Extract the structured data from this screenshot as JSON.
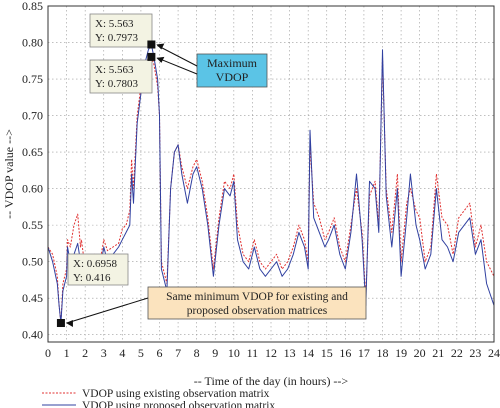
{
  "chart_data": {
    "type": "line",
    "xlabel": "-- Time of the day (in hours) -->",
    "ylabel": "-- VDOP value -->",
    "xlim": [
      0,
      24
    ],
    "ylim": [
      0.39,
      0.85
    ],
    "xticks": [
      0,
      1,
      2,
      3,
      4,
      5,
      6,
      7,
      8,
      9,
      10,
      11,
      12,
      13,
      14,
      15,
      16,
      17,
      18,
      19,
      20,
      21,
      22,
      23,
      24
    ],
    "yticks": [
      0.4,
      0.45,
      0.5,
      0.55,
      0.6,
      0.65,
      0.7,
      0.75,
      0.8,
      0.85
    ],
    "grid": "dotted",
    "legend_position": "bottom-left, below plot",
    "series": [
      {
        "name": "VDOP using existing observation matrix",
        "color": "#e03030",
        "style": "dotted",
        "x": [
          0,
          0.25,
          0.5,
          0.6,
          0.6958,
          0.8,
          1.0,
          1.05,
          1.2,
          1.4,
          1.6,
          1.75,
          1.8,
          2.0,
          2.2,
          2.5,
          2.8,
          3.0,
          3.2,
          3.5,
          3.8,
          4.0,
          4.2,
          4.4,
          4.5,
          4.6,
          4.8,
          5.0,
          5.2,
          5.4,
          5.563,
          5.7,
          5.9,
          6.0,
          6.1,
          6.4,
          6.6,
          6.8,
          7.0,
          7.2,
          7.5,
          7.8,
          8.0,
          8.3,
          8.6,
          8.9,
          9.2,
          9.5,
          9.8,
          10.0,
          10.2,
          10.5,
          10.8,
          11.1,
          11.4,
          11.7,
          12.0,
          12.3,
          12.6,
          12.9,
          13.2,
          13.5,
          13.8,
          14.0,
          14.1,
          14.3,
          14.6,
          14.9,
          15.1,
          15.4,
          15.7,
          16.0,
          16.3,
          16.6,
          16.9,
          17.1,
          17.3,
          17.6,
          17.8,
          18.0,
          18.2,
          18.5,
          18.8,
          19.0,
          19.3,
          19.5,
          19.8,
          20.0,
          20.3,
          20.6,
          20.9,
          21.2,
          21.5,
          21.8,
          22.1,
          22.4,
          22.7,
          23.0,
          23.3,
          23.6,
          24.0
        ],
        "y": [
          0.52,
          0.51,
          0.48,
          0.44,
          0.416,
          0.47,
          0.49,
          0.53,
          0.52,
          0.55,
          0.565,
          0.52,
          0.53,
          0.49,
          0.5,
          0.51,
          0.5,
          0.53,
          0.515,
          0.52,
          0.525,
          0.545,
          0.55,
          0.57,
          0.64,
          0.6,
          0.7,
          0.74,
          0.76,
          0.78,
          0.7803,
          0.77,
          0.74,
          0.7,
          0.5,
          0.47,
          0.6,
          0.65,
          0.66,
          0.63,
          0.6,
          0.63,
          0.64,
          0.61,
          0.56,
          0.49,
          0.56,
          0.61,
          0.6,
          0.62,
          0.55,
          0.51,
          0.5,
          0.53,
          0.5,
          0.49,
          0.5,
          0.51,
          0.49,
          0.5,
          0.52,
          0.55,
          0.53,
          0.5,
          0.66,
          0.58,
          0.56,
          0.53,
          0.54,
          0.56,
          0.52,
          0.5,
          0.55,
          0.6,
          0.54,
          0.45,
          0.59,
          0.61,
          0.55,
          0.78,
          0.6,
          0.54,
          0.62,
          0.5,
          0.58,
          0.6,
          0.57,
          0.56,
          0.5,
          0.52,
          0.62,
          0.56,
          0.55,
          0.51,
          0.56,
          0.57,
          0.58,
          0.52,
          0.55,
          0.5,
          0.48
        ]
      },
      {
        "name": "VDOP using proposed observation matrix",
        "color": "#3040a0",
        "style": "solid",
        "x": [
          0,
          0.25,
          0.5,
          0.6,
          0.6958,
          0.8,
          1.0,
          1.05,
          1.2,
          1.4,
          1.6,
          1.75,
          1.8,
          2.0,
          2.2,
          2.5,
          2.8,
          3.0,
          3.2,
          3.5,
          3.8,
          4.0,
          4.2,
          4.4,
          4.5,
          4.6,
          4.8,
          5.0,
          5.2,
          5.4,
          5.563,
          5.7,
          5.9,
          6.0,
          6.1,
          6.4,
          6.6,
          6.8,
          7.0,
          7.2,
          7.5,
          7.8,
          8.0,
          8.3,
          8.6,
          8.9,
          9.2,
          9.5,
          9.8,
          10.0,
          10.2,
          10.5,
          10.8,
          11.1,
          11.4,
          11.7,
          12.0,
          12.3,
          12.6,
          12.9,
          13.2,
          13.5,
          13.8,
          14.0,
          14.1,
          14.3,
          14.6,
          14.9,
          15.1,
          15.4,
          15.7,
          16.0,
          16.3,
          16.6,
          16.9,
          17.1,
          17.3,
          17.6,
          17.8,
          18.0,
          18.2,
          18.5,
          18.8,
          19.0,
          19.3,
          19.5,
          19.8,
          20.0,
          20.3,
          20.6,
          20.9,
          21.2,
          21.5,
          21.8,
          22.1,
          22.4,
          22.7,
          23.0,
          23.3,
          23.6,
          24.0
        ],
        "y": [
          0.52,
          0.5,
          0.47,
          0.44,
          0.416,
          0.46,
          0.48,
          0.52,
          0.5,
          0.51,
          0.525,
          0.5,
          0.51,
          0.49,
          0.5,
          0.5,
          0.49,
          0.52,
          0.5,
          0.51,
          0.52,
          0.53,
          0.54,
          0.55,
          0.62,
          0.58,
          0.69,
          0.73,
          0.77,
          0.79,
          0.7973,
          0.78,
          0.75,
          0.7,
          0.49,
          0.46,
          0.6,
          0.65,
          0.66,
          0.62,
          0.58,
          0.62,
          0.63,
          0.6,
          0.55,
          0.48,
          0.55,
          0.6,
          0.59,
          0.61,
          0.53,
          0.5,
          0.49,
          0.52,
          0.49,
          0.48,
          0.49,
          0.5,
          0.48,
          0.49,
          0.51,
          0.54,
          0.52,
          0.49,
          0.68,
          0.56,
          0.54,
          0.52,
          0.53,
          0.55,
          0.51,
          0.49,
          0.54,
          0.62,
          0.53,
          0.44,
          0.61,
          0.6,
          0.54,
          0.79,
          0.59,
          0.52,
          0.6,
          0.48,
          0.56,
          0.62,
          0.55,
          0.53,
          0.49,
          0.51,
          0.6,
          0.53,
          0.52,
          0.5,
          0.54,
          0.55,
          0.56,
          0.51,
          0.53,
          0.47,
          0.44
        ]
      }
    ],
    "annotations": [
      {
        "id": "max1",
        "line1": "X: 5.563",
        "line2": "Y: 0.7973",
        "x": 5.563,
        "y": 0.7973
      },
      {
        "id": "max2",
        "line1": "X: 5.563",
        "line2": "Y: 0.7803",
        "x": 5.563,
        "y": 0.7803
      },
      {
        "id": "min",
        "line1": "X: 0.6958",
        "line2": "Y: 0.416",
        "x": 0.6958,
        "y": 0.416
      }
    ],
    "callouts": [
      {
        "id": "max-callout",
        "lines": [
          "Maximum",
          "VDOP"
        ],
        "color": "#5bc4e6"
      },
      {
        "id": "min-callout",
        "lines": [
          "Same minimum VDOP for existing and",
          "proposed observation matrices"
        ],
        "color": "#fbe3be"
      }
    ]
  }
}
